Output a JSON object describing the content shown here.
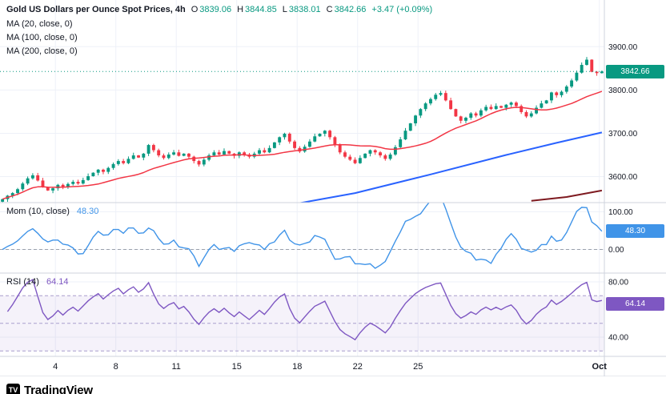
{
  "header": {
    "title": "Gold US Dollars per Ounce Spot Prices, 4h",
    "ohlc_items": [
      {
        "label": "O",
        "value": "3839.06"
      },
      {
        "label": "H",
        "value": "3844.85"
      },
      {
        "label": "L",
        "value": "3838.01"
      },
      {
        "label": "C",
        "value": "3842.66"
      }
    ],
    "change": "+3.47 (+0.09%)",
    "ma_lines": [
      "MA (20, close, 0)",
      "MA (100, close, 0)",
      "MA (200, close, 0)"
    ]
  },
  "indicators": {
    "momentum": {
      "label": "Mom (10, close)",
      "value": "48.30"
    },
    "rsi": {
      "label": "RSI (14)",
      "value": "64.14"
    }
  },
  "badges": {
    "price": "3842.66",
    "momentum": "48.30",
    "rsi": "64.14"
  },
  "colors": {
    "up": "#089981",
    "down": "#f23645",
    "grid": "#eef1f8",
    "divider": "#cfd3dd",
    "axis_text": "#131722",
    "mom_line": "#4094e8",
    "mom_zero": "#9aa0ab",
    "rsi_line": "#7e57c2",
    "rsi_band": "rgba(126,87,194,0.08)",
    "rsi_band_line": "#a99ece",
    "badge_text": "#ffffff"
  },
  "watermark": {
    "mark": "TV",
    "text": "TradingView"
  },
  "chart_data": {
    "type": "candlestick",
    "title": "Gold US Dollars per Ounce Spot Prices",
    "interval": "4h",
    "last_candle": {
      "open": 3839.06,
      "high": 3844.85,
      "low": 3838.01,
      "close": 3842.66,
      "change_abs": 3.47,
      "change_pct": 0.09
    },
    "closes": [
      3548,
      3556,
      3562,
      3571,
      3584,
      3596,
      3603,
      3591,
      3576,
      3568,
      3573,
      3581,
      3576,
      3583,
      3588,
      3584,
      3592,
      3601,
      3609,
      3616,
      3611,
      3620,
      3629,
      3636,
      3631,
      3641,
      3649,
      3644,
      3653,
      3673,
      3661,
      3649,
      3643,
      3651,
      3656,
      3648,
      3653,
      3646,
      3636,
      3628,
      3639,
      3649,
      3656,
      3651,
      3659,
      3653,
      3648,
      3656,
      3651,
      3646,
      3653,
      3661,
      3656,
      3666,
      3679,
      3691,
      3699,
      3681,
      3666,
      3658,
      3669,
      3681,
      3693,
      3699,
      3706,
      3691,
      3673,
      3656,
      3646,
      3639,
      3631,
      3643,
      3653,
      3661,
      3656,
      3649,
      3641,
      3651,
      3668,
      3686,
      3706,
      3723,
      3741,
      3756,
      3769,
      3779,
      3789,
      3793,
      3776,
      3756,
      3739,
      3729,
      3736,
      3746,
      3741,
      3753,
      3761,
      3756,
      3763,
      3759,
      3766,
      3771,
      3763,
      3749,
      3739,
      3746,
      3759,
      3769,
      3776,
      3794.36,
      3788,
      3796,
      3808,
      3822,
      3840,
      3858,
      3870,
      3842,
      3839,
      3842.66
    ],
    "price_axis": {
      "min": 3540,
      "max": 3993,
      "gridlines": [
        3900,
        3800,
        3700,
        3600
      ]
    },
    "overlays": [
      {
        "name": "MA (20, close, 0)",
        "type": "sma",
        "period": 20,
        "color": "#f23645"
      },
      {
        "name": "MA (100, close, 0)",
        "type": "anchors",
        "color": "#2962ff",
        "points": [
          [
            50,
            3520
          ],
          [
            70,
            3562
          ],
          [
            85,
            3605
          ],
          [
            100,
            3650
          ],
          [
            110,
            3678
          ],
          [
            119,
            3702
          ]
        ]
      },
      {
        "name": "MA (200, close, 0)",
        "type": "anchors",
        "color": "#7e1a20",
        "points": [
          [
            105,
            3544
          ],
          [
            112,
            3553
          ],
          [
            119,
            3568
          ]
        ]
      }
    ],
    "momentum": {
      "period": 10,
      "value": 48.3,
      "gridlines": [
        100,
        0
      ],
      "zero_line": 0
    },
    "rsi": {
      "period": 14,
      "value": 64.14,
      "gridlines": [
        80,
        40
      ],
      "band": [
        30,
        70
      ],
      "mid": 50
    },
    "time_axis": [
      {
        "label": "4",
        "index": 10.5
      },
      {
        "label": "8",
        "index": 22.5
      },
      {
        "label": "11",
        "index": 34.5
      },
      {
        "label": "15",
        "index": 46.5
      },
      {
        "label": "18",
        "index": 58.5
      },
      {
        "label": "22",
        "index": 70.5
      },
      {
        "label": "25",
        "index": 82.5
      },
      {
        "label": "Oct",
        "index": 118.5,
        "bold": true
      }
    ]
  }
}
